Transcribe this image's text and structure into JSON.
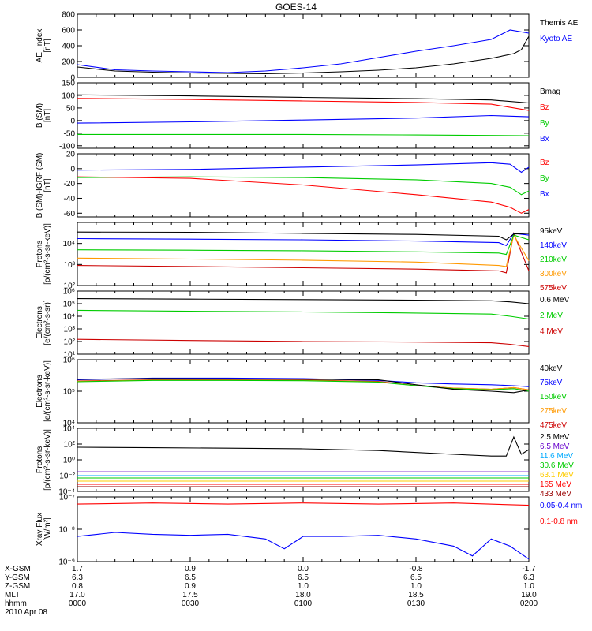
{
  "title": "GOES-14",
  "date": "2010 Apr 08",
  "chart_data": [
    {
      "type": "line",
      "ylabel": [
        "AE_index",
        "[nT]"
      ],
      "ylim": [
        0,
        800
      ],
      "yticks": [
        "0",
        "200",
        "400",
        "600",
        "800"
      ],
      "tickvals": [
        0,
        200,
        400,
        600,
        800
      ],
      "series": [
        {
          "name": "Kyoto AE",
          "color": "#0000ff",
          "x": [
            0,
            10,
            20,
            30,
            40,
            50,
            60,
            70,
            80,
            90,
            100,
            110,
            115,
            120
          ],
          "y": [
            160,
            95,
            80,
            70,
            60,
            80,
            120,
            170,
            250,
            330,
            400,
            480,
            600,
            560
          ]
        },
        {
          "name": "Themis AE",
          "color": "#000000",
          "x": [
            0,
            10,
            20,
            30,
            40,
            50,
            60,
            70,
            80,
            90,
            100,
            110,
            116,
            118,
            120
          ],
          "y": [
            130,
            80,
            65,
            55,
            50,
            45,
            55,
            70,
            90,
            120,
            170,
            240,
            300,
            350,
            520
          ]
        }
      ]
    },
    {
      "type": "line",
      "ylabel": [
        "B (SM)",
        "[nT]"
      ],
      "ylim": [
        -110,
        150
      ],
      "yticks": [
        "-100",
        "-50",
        "0",
        "50",
        "100",
        "150"
      ],
      "tickvals": [
        -100,
        -50,
        0,
        50,
        100,
        150
      ],
      "series": [
        {
          "name": "Bx",
          "color": "#0000ff",
          "x": [
            0,
            30,
            60,
            90,
            110,
            120
          ],
          "y": [
            -10,
            -5,
            2,
            10,
            20,
            15
          ]
        },
        {
          "name": "By",
          "color": "#00cc00",
          "x": [
            0,
            30,
            60,
            90,
            120
          ],
          "y": [
            -55,
            -55,
            -55,
            -57,
            -60
          ]
        },
        {
          "name": "Bz",
          "color": "#ff0000",
          "x": [
            0,
            30,
            60,
            90,
            110,
            120
          ],
          "y": [
            88,
            84,
            78,
            72,
            65,
            40
          ]
        },
        {
          "name": "Bmag",
          "color": "#000000",
          "x": [
            0,
            30,
            60,
            90,
            110,
            120
          ],
          "y": [
            102,
            98,
            92,
            87,
            82,
            70
          ]
        }
      ]
    },
    {
      "type": "line",
      "ylabel": [
        "B (SM)-IGRF (SM)",
        "[nT]"
      ],
      "ylim": [
        -65,
        20
      ],
      "yticks": [
        "-60",
        "-40",
        "-20",
        "0",
        "20"
      ],
      "tickvals": [
        -60,
        -40,
        -20,
        0,
        20
      ],
      "series": [
        {
          "name": "Bx",
          "color": "#0000ff",
          "x": [
            0,
            30,
            60,
            90,
            110,
            115,
            118,
            120
          ],
          "y": [
            -2,
            -1,
            2,
            5,
            8,
            6,
            -5,
            2
          ]
        },
        {
          "name": "By",
          "color": "#00cc00",
          "x": [
            0,
            30,
            60,
            90,
            110,
            115,
            118,
            120
          ],
          "y": [
            -12,
            -11,
            -12,
            -15,
            -20,
            -25,
            -35,
            -30
          ]
        },
        {
          "name": "Bz",
          "color": "#ff0000",
          "x": [
            0,
            30,
            60,
            90,
            110,
            115,
            118,
            120
          ],
          "y": [
            -11,
            -13,
            -22,
            -35,
            -45,
            -52,
            -60,
            -55
          ]
        }
      ]
    },
    {
      "type": "line",
      "log": true,
      "ylabel": [
        "Protons",
        "[p/(cm²-s-sr-keV)]"
      ],
      "ylim": [
        100,
        100000
      ],
      "yticks": [
        "10²",
        "10³",
        "10⁴"
      ],
      "tickvals": [
        100,
        1000,
        10000
      ],
      "series": [
        {
          "name": "575keV",
          "color": "#cc0000",
          "x": [
            0,
            30,
            60,
            90,
            112,
            114,
            116,
            120
          ],
          "y": [
            900,
            800,
            700,
            600,
            500,
            400,
            30000,
            500
          ]
        },
        {
          "name": "300keV",
          "color": "#ff9900",
          "x": [
            0,
            30,
            60,
            90,
            112,
            114,
            116,
            120
          ],
          "y": [
            2000,
            1800,
            1600,
            1300,
            900,
            800,
            25000,
            1500
          ]
        },
        {
          "name": "210keV",
          "color": "#00cc00",
          "x": [
            0,
            30,
            60,
            90,
            112,
            114,
            116,
            120
          ],
          "y": [
            5000,
            4800,
            4500,
            4000,
            3500,
            3000,
            25000,
            15000
          ]
        },
        {
          "name": "140keV",
          "color": "#0000ff",
          "x": [
            0,
            30,
            60,
            90,
            112,
            114,
            116,
            120
          ],
          "y": [
            17000,
            16000,
            15000,
            13000,
            11000,
            8000,
            30000,
            25000
          ]
        },
        {
          "name": "95keV",
          "color": "#000000",
          "x": [
            0,
            30,
            60,
            90,
            112,
            114,
            116,
            120
          ],
          "y": [
            35000,
            34000,
            30000,
            27000,
            22000,
            15000,
            28000,
            30000
          ]
        }
      ]
    },
    {
      "type": "line",
      "log": true,
      "ylabel": [
        "Electrons",
        "[e/(cm²-s-sr)]"
      ],
      "ylim": [
        10,
        1000000
      ],
      "yticks": [
        "10¹",
        "10²",
        "10³",
        "10⁴",
        "10⁵",
        "10⁶"
      ],
      "tickvals": [
        10,
        100,
        1000,
        10000,
        100000,
        1000000
      ],
      "series": [
        {
          "name": "4 MeV",
          "color": "#cc0000",
          "x": [
            0,
            30,
            60,
            90,
            110,
            115,
            120
          ],
          "y": [
            150,
            120,
            100,
            90,
            80,
            60,
            40
          ]
        },
        {
          "name": "2 MeV",
          "color": "#00cc00",
          "x": [
            0,
            30,
            60,
            90,
            110,
            115,
            120
          ],
          "y": [
            30000,
            25000,
            22000,
            18000,
            15000,
            10000,
            6000
          ]
        },
        {
          "name": "0.6 MeV",
          "color": "#000000",
          "x": [
            0,
            30,
            60,
            90,
            110,
            115,
            120
          ],
          "y": [
            250000,
            230000,
            210000,
            190000,
            170000,
            140000,
            100000
          ]
        }
      ]
    },
    {
      "type": "line",
      "log": true,
      "ylabel": [
        "Electrons",
        "[e/(cm²-s-sr-keV)]"
      ],
      "ylim": [
        10000,
        1000000
      ],
      "yticks": [
        "10⁴",
        "10⁵",
        "10⁶"
      ],
      "tickvals": [
        10000,
        100000,
        1000000
      ],
      "series": [
        {
          "name": "475keV",
          "color": "#cc0000",
          "x": [
            0,
            20,
            40,
            60,
            80,
            90,
            100,
            110,
            116,
            120
          ],
          "y": [
            210000,
            230000,
            230000,
            225000,
            205000,
            150000,
            125000,
            115000,
            130000,
            110000
          ]
        },
        {
          "name": "275keV",
          "color": "#ff9900",
          "x": [
            0,
            20,
            40,
            60,
            80,
            90,
            100,
            110,
            116,
            120
          ],
          "y": [
            205000,
            225000,
            225000,
            220000,
            200000,
            150000,
            125000,
            115000,
            130000,
            110000
          ]
        },
        {
          "name": "150keV",
          "color": "#00cc00",
          "x": [
            0,
            20,
            40,
            60,
            80,
            90,
            100,
            110,
            116,
            120
          ],
          "y": [
            200000,
            220000,
            220000,
            215000,
            195000,
            150000,
            120000,
            110000,
            120000,
            100000
          ]
        },
        {
          "name": "75keV",
          "color": "#0000ff",
          "x": [
            0,
            20,
            40,
            60,
            80,
            90,
            100,
            110,
            116,
            120
          ],
          "y": [
            230000,
            260000,
            260000,
            250000,
            220000,
            185000,
            170000,
            160000,
            150000,
            140000
          ]
        },
        {
          "name": "40keV",
          "color": "#000000",
          "x": [
            0,
            20,
            40,
            60,
            80,
            90,
            100,
            110,
            116,
            120
          ],
          "y": [
            240000,
            250000,
            245000,
            240000,
            230000,
            160000,
            115000,
            100000,
            90000,
            110000
          ]
        }
      ]
    },
    {
      "type": "line",
      "log": true,
      "ylabel": [
        "Protons",
        "[p/(cm²-s-sr-keV)]"
      ],
      "ylim": [
        0.0001,
        10000
      ],
      "yticks": [
        "10⁻⁴",
        "10⁻²",
        "10⁰",
        "10²",
        "10⁴"
      ],
      "tickvals": [
        0.0001,
        0.01,
        1,
        100,
        10000
      ],
      "series": [
        {
          "name": "433 MeV",
          "color": "#990000",
          "x": [
            0,
            30,
            60,
            90,
            120
          ],
          "y": [
            0.0004,
            0.0004,
            0.0004,
            0.0004,
            0.0004
          ]
        },
        {
          "name": "165 MeV",
          "color": "#ff0000",
          "x": [
            0,
            30,
            60,
            90,
            120
          ],
          "y": [
            0.0008,
            0.0008,
            0.0008,
            0.0008,
            0.0008
          ]
        },
        {
          "name": "63.1 MeV",
          "color": "#ffcc00",
          "x": [
            0,
            30,
            60,
            90,
            120
          ],
          "y": [
            0.002,
            0.002,
            0.002,
            0.002,
            0.002
          ]
        },
        {
          "name": "30.6 MeV",
          "color": "#00cc00",
          "x": [
            0,
            30,
            60,
            90,
            120
          ],
          "y": [
            0.005,
            0.005,
            0.005,
            0.005,
            0.005
          ]
        },
        {
          "name": "11.6 MeV",
          "color": "#00aaff",
          "x": [
            0,
            30,
            60,
            90,
            120
          ],
          "y": [
            0.01,
            0.01,
            0.01,
            0.01,
            0.01
          ]
        },
        {
          "name": "6.5 MeV",
          "color": "#6600cc",
          "x": [
            0,
            30,
            60,
            90,
            120
          ],
          "y": [
            0.03,
            0.03,
            0.03,
            0.03,
            0.03
          ]
        },
        {
          "name": "2.5 MeV",
          "color": "#000000",
          "x": [
            0,
            20,
            40,
            60,
            80,
            100,
            110,
            114,
            116,
            118,
            120
          ],
          "y": [
            40,
            35,
            30,
            25,
            15,
            5,
            3,
            3,
            800,
            5,
            20
          ]
        }
      ]
    },
    {
      "type": "line",
      "log": true,
      "ylabel": [
        "Xray Flux",
        "[W/m²]"
      ],
      "ylim": [
        1e-09,
        1e-07
      ],
      "yticks": [
        "10⁻⁹",
        "10⁻⁸",
        "10⁻⁷"
      ],
      "tickvals": [
        1e-09,
        1e-08,
        1e-07
      ],
      "series": [
        {
          "name": "0.1-0.8 nm",
          "color": "#ff0000",
          "x": [
            0,
            20,
            40,
            60,
            80,
            100,
            120
          ],
          "y": [
            6e-08,
            6.5e-08,
            6e-08,
            6.5e-08,
            6e-08,
            6.5e-08,
            5.5e-08
          ]
        },
        {
          "name": "0.05-0.4 nm",
          "color": "#0000ff",
          "x": [
            0,
            10,
            20,
            30,
            40,
            50,
            55,
            60,
            70,
            80,
            90,
            100,
            105,
            110,
            115,
            120
          ],
          "y": [
            6e-09,
            8e-09,
            7e-09,
            6.5e-09,
            7e-09,
            5e-09,
            2.5e-09,
            6e-09,
            6e-09,
            6.5e-09,
            5e-09,
            3e-09,
            1.5e-09,
            5e-09,
            3e-09,
            1.2e-09
          ]
        }
      ]
    }
  ],
  "footer": {
    "row_labels": [
      "X-GSM",
      "Y-GSM",
      "Z-GSM",
      "MLT",
      "hhmm"
    ],
    "columns": [
      {
        "x": 0,
        "values": [
          "1.7",
          "6.3",
          "0.8",
          "17.0",
          "0000"
        ]
      },
      {
        "x": 30,
        "values": [
          "0.9",
          "6.5",
          "0.9",
          "17.5",
          "0030"
        ]
      },
      {
        "x": 60,
        "values": [
          "0.0",
          "6.5",
          "1.0",
          "18.0",
          "0100"
        ]
      },
      {
        "x": 90,
        "values": [
          "-0.8",
          "6.5",
          "1.0",
          "18.5",
          "0130"
        ]
      },
      {
        "x": 120,
        "values": [
          "-1.7",
          "6.3",
          "1.0",
          "19.0",
          "0200"
        ]
      }
    ]
  }
}
